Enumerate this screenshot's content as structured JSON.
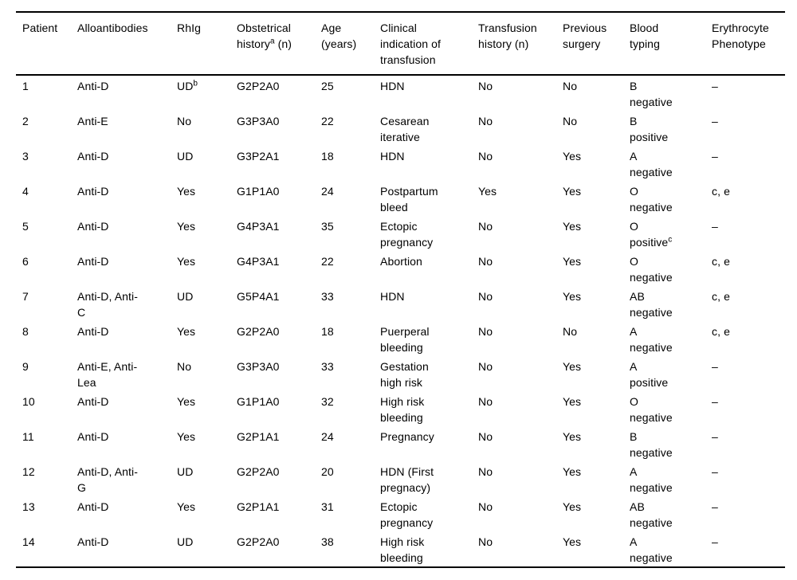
{
  "table": {
    "header": [
      "Patient",
      "Alloantibodies",
      "RhIg",
      "Obstetrical\nhistory^a (n)",
      "Age\n(years)",
      "Clinical\nindication of\ntransfusion",
      "Transfusion\nhistory (n)",
      "Previous\nsurgery",
      "Blood\ntyping",
      "Erythrocyte\nPhenotype"
    ],
    "column_names": [
      "patient",
      "alloantibodies",
      "rhig",
      "obstetrical-history",
      "age",
      "clinical-indication",
      "transfusion-history",
      "previous-surgery",
      "blood-typing",
      "erythrocyte-phenotype"
    ],
    "rows": [
      [
        "1",
        "Anti-D",
        "UD^b",
        "G2P2A0",
        "25",
        "HDN",
        "No",
        "No",
        "B\nnegative",
        "–"
      ],
      [
        "2",
        "Anti-E",
        "No",
        "G3P3A0",
        "22",
        "Cesarean\niterative",
        "No",
        "No",
        "B\npositive",
        "–"
      ],
      [
        "3",
        "Anti-D",
        "UD",
        "G3P2A1",
        "18",
        "HDN",
        "No",
        "Yes",
        "A\nnegative",
        "–"
      ],
      [
        "4",
        "Anti-D",
        "Yes",
        "G1P1A0",
        "24",
        "Postpartum\nbleed",
        "Yes",
        "Yes",
        "O\nnegative",
        "c, e"
      ],
      [
        "5",
        "Anti-D",
        "Yes",
        "G4P3A1",
        "35",
        "Ectopic\npregnancy",
        "No",
        "Yes",
        "O\npositive^c",
        "–"
      ],
      [
        "6",
        "Anti-D",
        "Yes",
        "G4P3A1",
        "22",
        "Abortion",
        "No",
        "Yes",
        "O\nnegative",
        "c, e"
      ],
      [
        "7",
        "Anti-D, Anti-\nC",
        "UD",
        "G5P4A1",
        "33",
        "HDN",
        "No",
        "Yes",
        "AB\nnegative",
        "c, e"
      ],
      [
        "8",
        "Anti-D",
        "Yes",
        "G2P2A0",
        "18",
        "Puerperal\nbleeding",
        "No",
        "No",
        "A\nnegative",
        "c, e"
      ],
      [
        "9",
        "Anti-E, Anti-\nLea",
        "No",
        "G3P3A0",
        "33",
        "Gestation\nhigh risk",
        "No",
        "Yes",
        "A\npositive",
        "–"
      ],
      [
        "10",
        "Anti-D",
        "Yes",
        "G1P1A0",
        "32",
        "High risk\nbleeding",
        "No",
        "Yes",
        "O\nnegative",
        "–"
      ],
      [
        "11",
        "Anti-D",
        "Yes",
        "G2P1A1",
        "24",
        "Pregnancy",
        "No",
        "Yes",
        "B\nnegative",
        "–"
      ],
      [
        "12",
        "Anti-D, Anti-\nG",
        "UD",
        "G2P2A0",
        "20",
        "HDN (First\npregnacy)",
        "No",
        "Yes",
        "A\nnegative",
        "–"
      ],
      [
        "13",
        "Anti-D",
        "Yes",
        "G2P1A1",
        "31",
        "Ectopic\npregnancy",
        "No",
        "Yes",
        "AB\nnegative",
        "–"
      ],
      [
        "14",
        "Anti-D",
        "UD",
        "G2P2A0",
        "38",
        "High risk\nbleeding",
        "No",
        "Yes",
        "A\nnegative",
        "–"
      ]
    ],
    "text_color": "#000000",
    "rule_color": "#000000"
  }
}
